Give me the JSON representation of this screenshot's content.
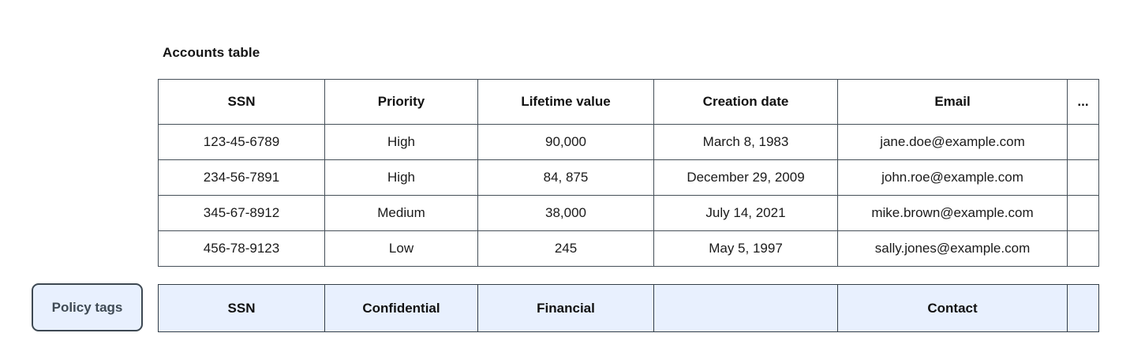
{
  "title": "Accounts table",
  "policy_button_label": "Policy tags",
  "accounts_table": {
    "columns": [
      "SSN",
      "Priority",
      "Lifetime value",
      "Creation date",
      "Email",
      "..."
    ],
    "rows": [
      [
        "123-45-6789",
        "High",
        "90,000",
        "March 8, 1983",
        "jane.doe@example.com",
        ""
      ],
      [
        "234-56-7891",
        "High",
        "84, 875",
        "December 29, 2009",
        "john.roe@example.com",
        ""
      ],
      [
        "345-67-8912",
        "Medium",
        "38,000",
        "July 14, 2021",
        "mike.brown@example.com",
        ""
      ],
      [
        "456-78-9123",
        "Low",
        "245",
        "May 5, 1997",
        "sally.jones@example.com",
        ""
      ]
    ]
  },
  "policy_tags_row": [
    "SSN",
    "Confidential",
    "Financial",
    "",
    "Contact",
    ""
  ],
  "colors": {
    "table_border": "#454f58",
    "policy_row_border": "#333e48",
    "policy_row_fill": "#e8f0fe",
    "button_fill": "#e8f0fe",
    "button_border": "#3d4852",
    "button_text": "#3f4a54",
    "cell_text": "#1a1a1a"
  }
}
